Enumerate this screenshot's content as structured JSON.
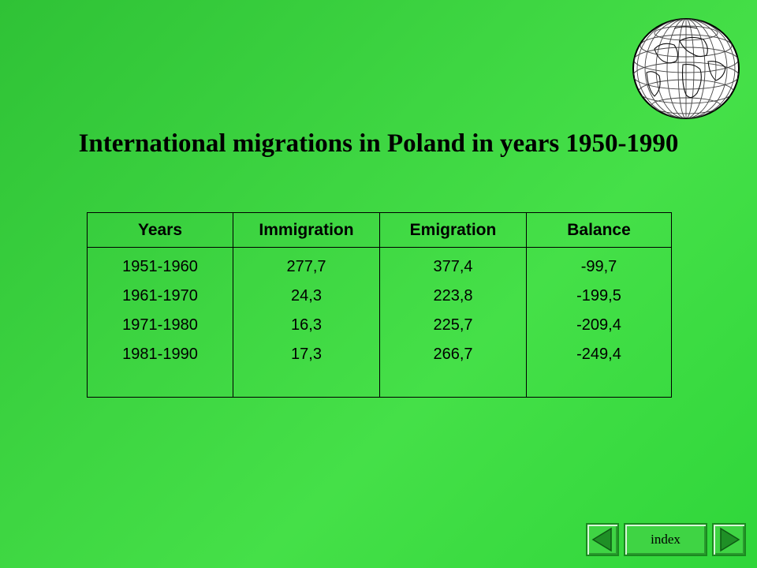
{
  "title": "International migrations in Poland in years 1950-1990",
  "table": {
    "headers": [
      "Years",
      "Immigration",
      "Emigration",
      "Balance"
    ],
    "columns": [
      [
        "1951-1960",
        "1961-1970",
        "1971-1980",
        "1981-1990"
      ],
      [
        "277,7",
        "24,3",
        "16,3",
        "17,3"
      ],
      [
        "377,4",
        "223,8",
        "225,7",
        "266,7"
      ],
      [
        "-99,7",
        "-199,5",
        "-209,4",
        "-249,4"
      ]
    ]
  },
  "nav": {
    "prev_icon": "triangle-left-icon",
    "index_label": "index",
    "next_icon": "triangle-right-icon"
  },
  "decor": {
    "globe_icon": "globe-icon",
    "accent_color": "#3ed642"
  }
}
